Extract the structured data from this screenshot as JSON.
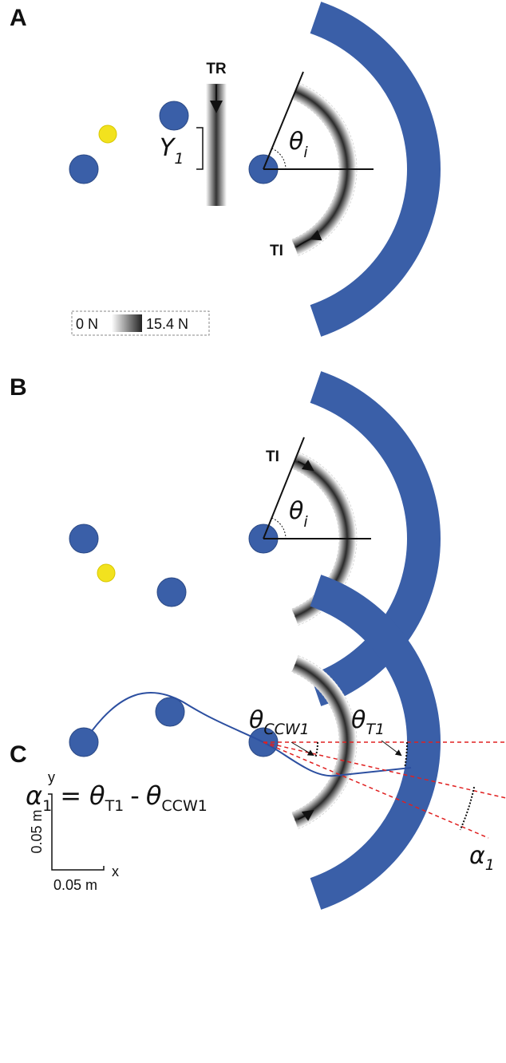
{
  "panels": [
    {
      "label": "A",
      "tr": "TR",
      "y_symbol": "Y",
      "y_subscript": "1",
      "theta_symbol": "θ",
      "theta_subscript": "i",
      "ti": "TI",
      "colorbar": {
        "min_label": "0 N",
        "max_label": "15.4 N"
      }
    },
    {
      "label": "B",
      "ti": "TI",
      "theta_symbol": "θ",
      "theta_subscript": "i"
    },
    {
      "label": "C",
      "equation": {
        "lhs_symbol": "α",
        "lhs_subscript": "1",
        "equals": "=",
        "term1_symbol": "θ",
        "term1_subscript": "T1",
        "minus": "-",
        "term2_symbol": "θ",
        "term2_subscript": "CCW1"
      },
      "theta_ccw": {
        "symbol": "θ",
        "subscript": "CCW1"
      },
      "theta_t": {
        "symbol": "θ",
        "subscript": "T1"
      },
      "alpha": {
        "symbol": "α",
        "subscript": "1"
      },
      "scale_bar": {
        "y_label": "y",
        "x_label": "x",
        "y_length": "0.05 m",
        "x_length": "0.05 m"
      }
    }
  ]
}
